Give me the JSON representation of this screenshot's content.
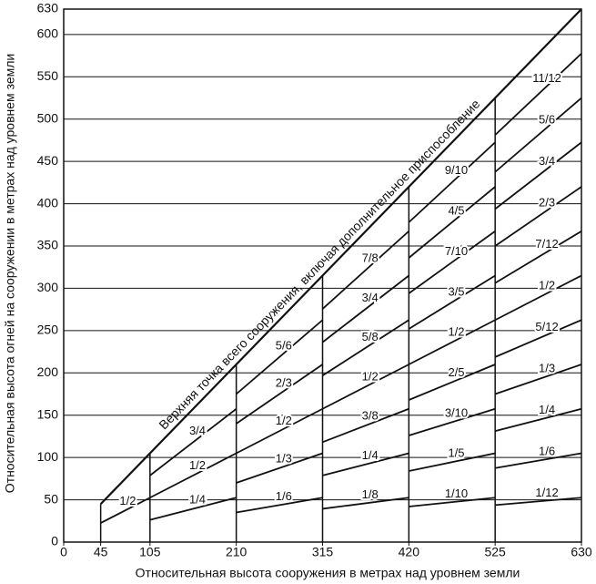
{
  "chart_data": {
    "type": "line",
    "x_label": "Относительная высота сооружения в метрах над уровнем земли",
    "y_label": "Относительная высота огней на сооружении в метрах над уровнем земли",
    "xlim": [
      0,
      630
    ],
    "ylim": [
      0,
      630
    ],
    "xticks": [
      0,
      45,
      105,
      210,
      315,
      420,
      525,
      630
    ],
    "yticks": [
      0,
      50,
      100,
      150,
      200,
      250,
      300,
      350,
      400,
      450,
      500,
      550,
      600,
      630
    ],
    "grid": true,
    "color": "#111111",
    "series": [
      {
        "name": "Верхняя точка всего сооружения, включая дополнительное приспособление",
        "x": [
          45,
          630
        ],
        "values": [
          45,
          630
        ]
      },
      {
        "name": "1/2",
        "x": [
          45,
          105
        ],
        "values": [
          22.5,
          52.5
        ]
      },
      {
        "name": "1/4",
        "x": [
          105,
          210
        ],
        "values": [
          26.25,
          52.5
        ]
      },
      {
        "name": "1/2",
        "x": [
          105,
          210
        ],
        "values": [
          52.5,
          105
        ]
      },
      {
        "name": "3/4",
        "x": [
          105,
          210
        ],
        "values": [
          78.75,
          157.5
        ]
      },
      {
        "name": "1/6",
        "x": [
          210,
          315
        ],
        "values": [
          35,
          52.5
        ]
      },
      {
        "name": "1/3",
        "x": [
          210,
          315
        ],
        "values": [
          70,
          105
        ]
      },
      {
        "name": "1/2",
        "x": [
          210,
          315
        ],
        "values": [
          105,
          157.5
        ]
      },
      {
        "name": "2/3",
        "x": [
          210,
          315
        ],
        "values": [
          140,
          210
        ]
      },
      {
        "name": "5/6",
        "x": [
          210,
          315
        ],
        "values": [
          175,
          262.5
        ]
      },
      {
        "name": "1/8",
        "x": [
          315,
          420
        ],
        "values": [
          39.375,
          52.5
        ]
      },
      {
        "name": "1/4",
        "x": [
          315,
          420
        ],
        "values": [
          78.75,
          105
        ]
      },
      {
        "name": "3/8",
        "x": [
          315,
          420
        ],
        "values": [
          118.125,
          157.5
        ]
      },
      {
        "name": "1/2",
        "x": [
          315,
          420
        ],
        "values": [
          157.5,
          210
        ]
      },
      {
        "name": "5/8",
        "x": [
          315,
          420
        ],
        "values": [
          196.875,
          262.5
        ]
      },
      {
        "name": "3/4",
        "x": [
          315,
          420
        ],
        "values": [
          236.25,
          315
        ]
      },
      {
        "name": "7/8",
        "x": [
          315,
          420
        ],
        "values": [
          275.625,
          367.5
        ]
      },
      {
        "name": "1/10",
        "x": [
          420,
          525
        ],
        "values": [
          42,
          52.5
        ]
      },
      {
        "name": "1/5",
        "x": [
          420,
          525
        ],
        "values": [
          84,
          105
        ]
      },
      {
        "name": "3/10",
        "x": [
          420,
          525
        ],
        "values": [
          126,
          157.5
        ]
      },
      {
        "name": "2/5",
        "x": [
          420,
          525
        ],
        "values": [
          168,
          210
        ]
      },
      {
        "name": "1/2",
        "x": [
          420,
          525
        ],
        "values": [
          210,
          262.5
        ]
      },
      {
        "name": "3/5",
        "x": [
          420,
          525
        ],
        "values": [
          252,
          315
        ]
      },
      {
        "name": "7/10",
        "x": [
          420,
          525
        ],
        "values": [
          294,
          367.5
        ]
      },
      {
        "name": "4/5",
        "x": [
          420,
          525
        ],
        "values": [
          336,
          420
        ]
      },
      {
        "name": "9/10",
        "x": [
          420,
          525
        ],
        "values": [
          378,
          472.5
        ]
      },
      {
        "name": "1/12",
        "x": [
          525,
          630
        ],
        "values": [
          43.75,
          52.5
        ]
      },
      {
        "name": "1/6",
        "x": [
          525,
          630
        ],
        "values": [
          87.5,
          105
        ]
      },
      {
        "name": "1/4",
        "x": [
          525,
          630
        ],
        "values": [
          131.25,
          157.5
        ]
      },
      {
        "name": "1/3",
        "x": [
          525,
          630
        ],
        "values": [
          175,
          210
        ]
      },
      {
        "name": "5/12",
        "x": [
          525,
          630
        ],
        "values": [
          218.75,
          262.5
        ]
      },
      {
        "name": "1/2",
        "x": [
          525,
          630
        ],
        "values": [
          262.5,
          315
        ]
      },
      {
        "name": "7/12",
        "x": [
          525,
          630
        ],
        "values": [
          306.25,
          367.5
        ]
      },
      {
        "name": "2/3",
        "x": [
          525,
          630
        ],
        "values": [
          350,
          420
        ]
      },
      {
        "name": "3/4",
        "x": [
          525,
          630
        ],
        "values": [
          393.75,
          472.5
        ]
      },
      {
        "name": "5/6",
        "x": [
          525,
          630
        ],
        "values": [
          437.5,
          525
        ]
      },
      {
        "name": "11/12",
        "x": [
          525,
          630
        ],
        "values": [
          481.25,
          577.5
        ]
      }
    ]
  }
}
